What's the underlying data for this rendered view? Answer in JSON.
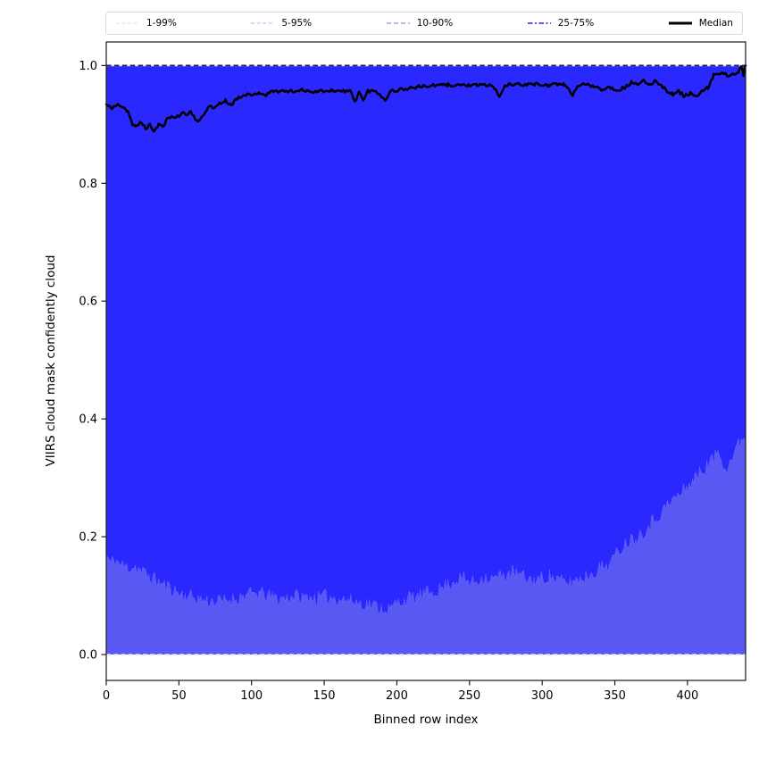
{
  "figure": {
    "background": "#ffffff"
  },
  "legend": {
    "border_color": "#d9d9d9",
    "entries": [
      {
        "label": "1-99%",
        "color": "#d9d9f7",
        "dash": [
          4,
          2.6
        ],
        "width": 1.1
      },
      {
        "label": "5-95%",
        "color": "#b2b2f2",
        "dash": [
          4,
          2.6
        ],
        "width": 1.1
      },
      {
        "label": "10-90%",
        "color": "#8c8cee",
        "dash": [
          5,
          3
        ],
        "width": 1.3
      },
      {
        "label": "25-75%",
        "color": "#5b59e6",
        "dash": [
          5.5,
          2.5,
          2,
          2.5
        ],
        "width": 2.0
      },
      {
        "label": "Median",
        "color": "#000000",
        "dash": [],
        "width": 3.0
      }
    ]
  },
  "chart_data": {
    "type": "line",
    "title": "",
    "xlabel": "Binned row index",
    "ylabel": "VIIRS cloud mask confidently cloud",
    "xlim": [
      0,
      440
    ],
    "ylim": [
      -0.044,
      1.04
    ],
    "xticks": [
      "0",
      "50",
      "100",
      "150",
      "200",
      "250",
      "300",
      "350",
      "400"
    ],
    "xtick_values": [
      0,
      50,
      100,
      150,
      200,
      250,
      300,
      350,
      400
    ],
    "yticks": [
      "0.0",
      "0.2",
      "0.4",
      "0.6",
      "0.8",
      "1.0"
    ],
    "ytick_values": [
      0,
      0.2,
      0.4,
      0.6,
      0.8,
      1.0
    ],
    "grid": false,
    "legend_position": "top-expanded",
    "colors": {
      "band_inner": "#2b28fe",
      "band_outer": "#5a58f3",
      "upper_bound_line": "#20205e",
      "upper_bound_underlay": "#e4e4fb",
      "lower_bound_line": "#d8d8f8",
      "median": "#000000",
      "spine": "#1a1a1a"
    },
    "upper_percentiles_value": 1.0,
    "lower_percentiles_value": 0.0,
    "series": [
      {
        "name": "p25_boundary",
        "points": [
          [
            0,
            0.17
          ],
          [
            3,
            0.155
          ],
          [
            6,
            0.162
          ],
          [
            10,
            0.152
          ],
          [
            15,
            0.148
          ],
          [
            20,
            0.15
          ],
          [
            25,
            0.14
          ],
          [
            30,
            0.133
          ],
          [
            35,
            0.125
          ],
          [
            40,
            0.118
          ],
          [
            45,
            0.112
          ],
          [
            50,
            0.104
          ],
          [
            55,
            0.1
          ],
          [
            60,
            0.098
          ],
          [
            65,
            0.094
          ],
          [
            70,
            0.092
          ],
          [
            75,
            0.09
          ],
          [
            80,
            0.09
          ],
          [
            85,
            0.094
          ],
          [
            90,
            0.096
          ],
          [
            95,
            0.1
          ],
          [
            100,
            0.103
          ],
          [
            105,
            0.104
          ],
          [
            110,
            0.1
          ],
          [
            115,
            0.097
          ],
          [
            120,
            0.095
          ],
          [
            125,
            0.098
          ],
          [
            130,
            0.1
          ],
          [
            135,
            0.096
          ],
          [
            140,
            0.099
          ],
          [
            145,
            0.094
          ],
          [
            150,
            0.099
          ],
          [
            155,
            0.098
          ],
          [
            160,
            0.096
          ],
          [
            165,
            0.093
          ],
          [
            170,
            0.09
          ],
          [
            175,
            0.088
          ],
          [
            180,
            0.086
          ],
          [
            185,
            0.083
          ],
          [
            190,
            0.08
          ],
          [
            195,
            0.076
          ],
          [
            200,
            0.088
          ],
          [
            205,
            0.093
          ],
          [
            210,
            0.096
          ],
          [
            215,
            0.099
          ],
          [
            220,
            0.103
          ],
          [
            225,
            0.108
          ],
          [
            230,
            0.112
          ],
          [
            235,
            0.12
          ],
          [
            240,
            0.126
          ],
          [
            245,
            0.13
          ],
          [
            250,
            0.122
          ],
          [
            255,
            0.125
          ],
          [
            260,
            0.132
          ],
          [
            265,
            0.128
          ],
          [
            270,
            0.132
          ],
          [
            275,
            0.136
          ],
          [
            280,
            0.14
          ],
          [
            285,
            0.134
          ],
          [
            290,
            0.128
          ],
          [
            295,
            0.126
          ],
          [
            300,
            0.13
          ],
          [
            305,
            0.134
          ],
          [
            310,
            0.128
          ],
          [
            315,
            0.122
          ],
          [
            320,
            0.124
          ],
          [
            325,
            0.128
          ],
          [
            330,
            0.133
          ],
          [
            335,
            0.14
          ],
          [
            340,
            0.148
          ],
          [
            345,
            0.153
          ],
          [
            350,
            0.166
          ],
          [
            355,
            0.184
          ],
          [
            360,
            0.195
          ],
          [
            365,
            0.2
          ],
          [
            370,
            0.21
          ],
          [
            375,
            0.224
          ],
          [
            380,
            0.236
          ],
          [
            385,
            0.25
          ],
          [
            390,
            0.264
          ],
          [
            395,
            0.272
          ],
          [
            400,
            0.286
          ],
          [
            405,
            0.3
          ],
          [
            410,
            0.312
          ],
          [
            415,
            0.326
          ],
          [
            418,
            0.332
          ],
          [
            421,
            0.346
          ],
          [
            424,
            0.331
          ],
          [
            427,
            0.318
          ],
          [
            430,
            0.331
          ],
          [
            433,
            0.348
          ],
          [
            436,
            0.36
          ],
          [
            438,
            0.374
          ],
          [
            440,
            0.352
          ]
        ]
      },
      {
        "name": "median",
        "points": [
          [
            0,
            0.935
          ],
          [
            4,
            0.928
          ],
          [
            8,
            0.936
          ],
          [
            12,
            0.93
          ],
          [
            15,
            0.92
          ],
          [
            18,
            0.9
          ],
          [
            21,
            0.896
          ],
          [
            24,
            0.905
          ],
          [
            27,
            0.893
          ],
          [
            30,
            0.899
          ],
          [
            33,
            0.89
          ],
          [
            36,
            0.9
          ],
          [
            39,
            0.896
          ],
          [
            42,
            0.908
          ],
          [
            45,
            0.915
          ],
          [
            48,
            0.91
          ],
          [
            52,
            0.92
          ],
          [
            55,
            0.916
          ],
          [
            58,
            0.922
          ],
          [
            62,
            0.905
          ],
          [
            66,
            0.912
          ],
          [
            70,
            0.93
          ],
          [
            74,
            0.928
          ],
          [
            78,
            0.936
          ],
          [
            82,
            0.94
          ],
          [
            86,
            0.934
          ],
          [
            90,
            0.944
          ],
          [
            95,
            0.952
          ],
          [
            100,
            0.948
          ],
          [
            105,
            0.955
          ],
          [
            110,
            0.95
          ],
          [
            115,
            0.957
          ],
          [
            125,
            0.956
          ],
          [
            135,
            0.958
          ],
          [
            145,
            0.956
          ],
          [
            155,
            0.958
          ],
          [
            162,
            0.956
          ],
          [
            168,
            0.957
          ],
          [
            171,
            0.938
          ],
          [
            174,
            0.956
          ],
          [
            177,
            0.94
          ],
          [
            180,
            0.957
          ],
          [
            186,
            0.956
          ],
          [
            192,
            0.942
          ],
          [
            196,
            0.957
          ],
          [
            205,
            0.96
          ],
          [
            215,
            0.964
          ],
          [
            225,
            0.966
          ],
          [
            235,
            0.967
          ],
          [
            245,
            0.967
          ],
          [
            255,
            0.966
          ],
          [
            265,
            0.967
          ],
          [
            271,
            0.948
          ],
          [
            275,
            0.967
          ],
          [
            285,
            0.968
          ],
          [
            295,
            0.968
          ],
          [
            305,
            0.967
          ],
          [
            315,
            0.968
          ],
          [
            321,
            0.951
          ],
          [
            326,
            0.968
          ],
          [
            335,
            0.966
          ],
          [
            341,
            0.96
          ],
          [
            347,
            0.963
          ],
          [
            352,
            0.958
          ],
          [
            357,
            0.963
          ],
          [
            362,
            0.972
          ],
          [
            366,
            0.966
          ],
          [
            370,
            0.974
          ],
          [
            374,
            0.967
          ],
          [
            378,
            0.975
          ],
          [
            382,
            0.966
          ],
          [
            386,
            0.957
          ],
          [
            390,
            0.951
          ],
          [
            394,
            0.956
          ],
          [
            398,
            0.948
          ],
          [
            402,
            0.953
          ],
          [
            406,
            0.947
          ],
          [
            410,
            0.955
          ],
          [
            414,
            0.962
          ],
          [
            418,
            0.984
          ],
          [
            424,
            0.986
          ],
          [
            428,
            0.984
          ],
          [
            432,
            0.986
          ],
          [
            435,
            0.987
          ],
          [
            437,
            0.999
          ],
          [
            438.5,
            0.985
          ],
          [
            440,
            1.0
          ]
        ]
      }
    ],
    "noise": {
      "seed": 11,
      "step": 1.1,
      "boundary_amplitude": 0.013,
      "median_amplitude": 0.0028
    }
  }
}
